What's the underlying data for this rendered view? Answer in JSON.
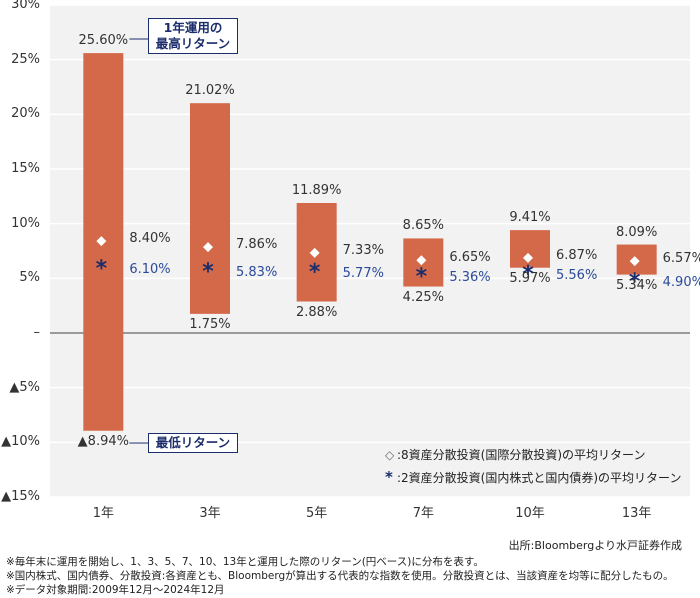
{
  "chart_data": {
    "type": "range-bar",
    "categories": [
      "1年",
      "3年",
      "5年",
      "7年",
      "10年",
      "13年"
    ],
    "series": [
      {
        "name": "最高リターン",
        "values": [
          25.6,
          21.02,
          11.89,
          8.65,
          9.41,
          8.09
        ]
      },
      {
        "name": "最低リターン",
        "values": [
          -8.94,
          1.75,
          2.88,
          4.25,
          5.97,
          5.34
        ]
      },
      {
        "name": "8資産分散投資(国際分散投資)の平均リターン",
        "values": [
          8.4,
          7.86,
          7.33,
          6.65,
          6.87,
          6.57
        ]
      },
      {
        "name": "2資産分散投資(国内株式と国内債券)の平均リターン",
        "values": [
          6.1,
          5.83,
          5.77,
          5.36,
          5.56,
          4.9
        ]
      }
    ],
    "labels": {
      "max": [
        "25.60%",
        "21.02%",
        "11.89%",
        "8.65%",
        "9.41%",
        "8.09%"
      ],
      "min": [
        "▲8.94%",
        "1.75%",
        "2.88%",
        "4.25%",
        "5.97%",
        "5.34%"
      ],
      "avg8": [
        "8.40%",
        "7.86%",
        "7.33%",
        "6.65%",
        "6.87%",
        "6.57%"
      ],
      "avg2": [
        "6.10%",
        "5.83%",
        "5.77%",
        "5.36%",
        "5.56%",
        "4.90%"
      ]
    },
    "ylim": [
      -15,
      30
    ],
    "yticks": [
      30,
      25,
      20,
      15,
      10,
      5,
      0,
      -5,
      -10,
      -15
    ],
    "ytick_labels": [
      "30%",
      "25%",
      "20%",
      "15%",
      "10%",
      "5%",
      "–",
      "▲5%",
      "▲10%",
      "▲15%"
    ],
    "colors": {
      "bar": "#d4694a",
      "avg8": "#ffffff",
      "avg2": "#1b2d6b",
      "grid_bg": "#f2f2f2"
    }
  },
  "callouts": {
    "max": "1年運用の\n最高リターン",
    "min": "最低リターン"
  },
  "legend": {
    "avg8_symbol": "◇",
    "avg8": ":8資産分散投資(国際分散投資)の平均リターン",
    "avg2_symbol": "*",
    "avg2": ":2資産分散投資(国内株式と国内債券)の平均リターン"
  },
  "source": "出所:Bloombergより水戸証券作成",
  "notes": [
    "※毎年末に運用を開始し、1、3、5、7、10、13年と運用した際のリターン(円ベース)に分布を表す。",
    "※国内株式、国内債券、分散投資:各資産とも、Bloombergが算出する代表的な指数を使用。分散投資とは、当該資産を均等に配分したもの。",
    "※データ対象期間:2009年12月〜2024年12月"
  ]
}
